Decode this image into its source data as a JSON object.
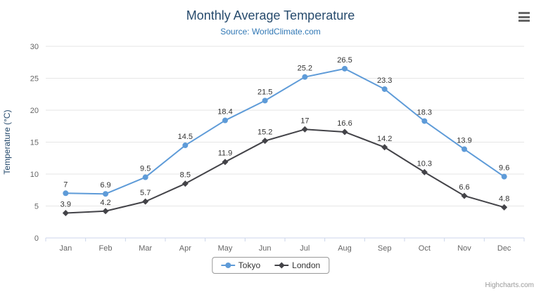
{
  "chart_data": {
    "type": "line",
    "title": "Monthly Average Temperature",
    "subtitle": "Source: WorldClimate.com",
    "categories": [
      "Jan",
      "Feb",
      "Mar",
      "Apr",
      "May",
      "Jun",
      "Jul",
      "Aug",
      "Sep",
      "Oct",
      "Nov",
      "Dec"
    ],
    "series": [
      {
        "name": "Tokyo",
        "color": "#5e9bd8",
        "marker": "circle",
        "values": [
          7,
          6.9,
          9.5,
          14.5,
          18.4,
          21.5,
          25.2,
          26.5,
          23.3,
          18.3,
          13.9,
          9.6
        ]
      },
      {
        "name": "London",
        "color": "#434348",
        "marker": "diamond",
        "values": [
          3.9,
          4.2,
          5.7,
          8.5,
          11.9,
          15.2,
          17,
          16.6,
          14.2,
          10.3,
          6.6,
          4.8
        ]
      }
    ],
    "xlabel": "",
    "ylabel": "Temperature (°C)",
    "ylim": [
      0,
      30
    ],
    "ytick_step": 5,
    "grid": true,
    "legend_position": "bottom",
    "data_labels": true
  },
  "icons": {
    "export_menu": "hamburger-menu-icon"
  },
  "credits": "Highcharts.com"
}
